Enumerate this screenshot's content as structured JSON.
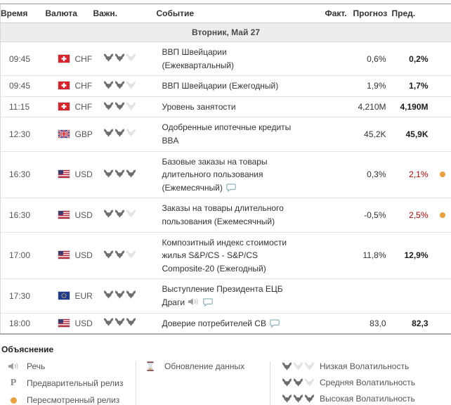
{
  "colors": {
    "red_value": "#c00000",
    "revised_dot": "#e9a13b",
    "bull_active": "#6e6e6e",
    "bull_inactive": "#e3e3e3",
    "comment_icon": "#8fb4bc"
  },
  "table": {
    "columns": {
      "time": "Время",
      "currency": "Валюта",
      "importance": "Важн.",
      "event": "Событие",
      "actual": "Факт.",
      "forecast": "Прогноз",
      "previous": "Пред."
    },
    "date_header": "Вторник, Май 27",
    "rows": [
      {
        "time": "09:45",
        "currency": "CHF",
        "flag": "switzerland",
        "importance": 2,
        "event": "ВВП Швейцарии (Ежеквартальный)",
        "actual": "",
        "forecast": "0,6%",
        "previous": "0,2%",
        "previous_red": false,
        "speech": false,
        "comment": false,
        "dot": false
      },
      {
        "time": "09:45",
        "currency": "CHF",
        "flag": "switzerland",
        "importance": 2,
        "event": "ВВП Швейцарии (Ежегодный)",
        "actual": "",
        "forecast": "1,9%",
        "previous": "1,7%",
        "previous_red": false,
        "speech": false,
        "comment": false,
        "dot": false
      },
      {
        "time": "11:15",
        "currency": "CHF",
        "flag": "switzerland",
        "importance": 2,
        "event": "Уровень занятости",
        "actual": "",
        "forecast": "4,210M",
        "previous": "4,190M",
        "previous_red": false,
        "speech": false,
        "comment": false,
        "dot": false
      },
      {
        "time": "12:30",
        "currency": "GBP",
        "flag": "uk",
        "importance": 2,
        "event": "Одобренные ипотечные кредиты BBA",
        "actual": "",
        "forecast": "45,2K",
        "previous": "45,9K",
        "previous_red": false,
        "speech": false,
        "comment": false,
        "dot": false
      },
      {
        "time": "16:30",
        "currency": "USD",
        "flag": "usa",
        "importance": 3,
        "event": "Базовые заказы на товары длительного пользования (Ежемесячный)",
        "actual": "",
        "forecast": "0,3%",
        "previous": "2,1%",
        "previous_red": true,
        "speech": false,
        "comment": true,
        "dot": true
      },
      {
        "time": "16:30",
        "currency": "USD",
        "flag": "usa",
        "importance": 2,
        "event": "Заказы на товары длительного пользования (Ежемесячный)",
        "actual": "",
        "forecast": "-0,5%",
        "previous": "2,5%",
        "previous_red": true,
        "speech": false,
        "comment": false,
        "dot": true
      },
      {
        "time": "17:00",
        "currency": "USD",
        "flag": "usa",
        "importance": 2,
        "event": "Композитный индекс стоимости жилья S&P/CS - S&P/CS Composite-20 (Ежегодный)",
        "actual": "",
        "forecast": "11,8%",
        "previous": "12,9%",
        "previous_red": false,
        "speech": false,
        "comment": false,
        "dot": false
      },
      {
        "time": "17:30",
        "currency": "EUR",
        "flag": "eu",
        "importance": 3,
        "event": "Выступление Президента ЕЦБ Драги",
        "actual": "",
        "forecast": "",
        "previous": "",
        "previous_red": false,
        "speech": true,
        "comment": true,
        "dot": false
      },
      {
        "time": "18:00",
        "currency": "USD",
        "flag": "usa",
        "importance": 3,
        "event": "Доверие потребителей CB",
        "actual": "",
        "forecast": "83,0",
        "previous": "82,3",
        "previous_red": false,
        "speech": false,
        "comment": true,
        "dot": false
      }
    ]
  },
  "legend": {
    "title": "Объяснение",
    "col1": [
      {
        "icon": "speech-icon",
        "label": "Речь"
      },
      {
        "icon": "preliminary-release-icon",
        "symbol": "P",
        "label": "Предварительный релиз"
      },
      {
        "icon": "revised-release-icon",
        "label": "Пересмотренный релиз"
      }
    ],
    "col2": [
      {
        "icon": "data-update-icon",
        "label": "Обновление данных"
      }
    ],
    "col3": [
      {
        "bulls": 1,
        "label": "Низкая Волатильность"
      },
      {
        "bulls": 2,
        "label": "Средняя Волатильность"
      },
      {
        "bulls": 3,
        "label": "Высокая Волатильность"
      }
    ]
  }
}
